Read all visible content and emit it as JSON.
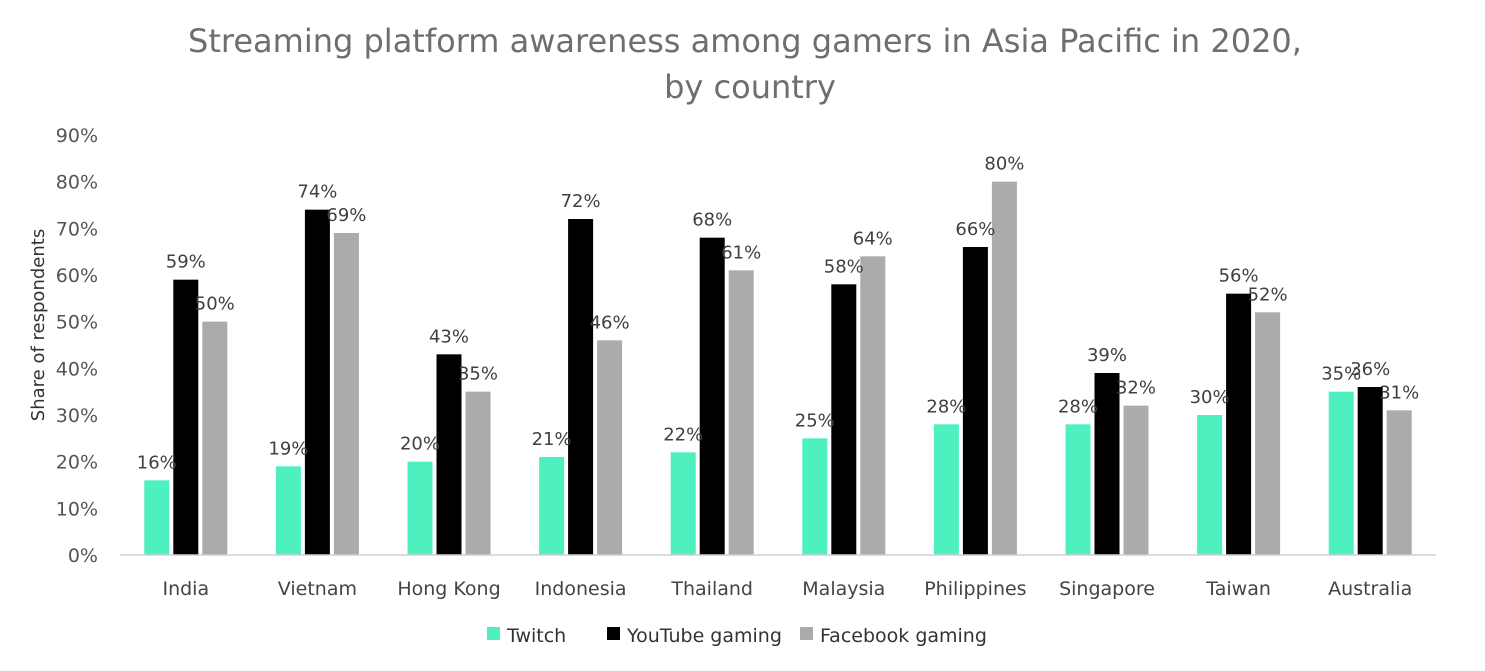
{
  "chart_data": {
    "type": "bar",
    "title_line1": "Streaming platform awareness among gamers in Asia Pacific in 2020,",
    "title_line2": "by country",
    "ylabel": "Share of respondents",
    "xlabel": "",
    "ylim": [
      0,
      90
    ],
    "yticks": [
      "0%",
      "10%",
      "20%",
      "30%",
      "40%",
      "50%",
      "60%",
      "70%",
      "80%",
      "90%"
    ],
    "grid": false,
    "legend_position": "bottom",
    "categories": [
      "India",
      "Vietnam",
      "Hong Kong",
      "Indonesia",
      "Thailand",
      "Malaysia",
      "Philippines",
      "Singapore",
      "Taiwan",
      "Australia"
    ],
    "series": [
      {
        "name": "Twitch",
        "color": "#4ef0c0",
        "values": [
          16,
          19,
          20,
          21,
          22,
          25,
          28,
          28,
          30,
          35
        ],
        "labels": [
          "16%",
          "19%",
          "20%",
          "21%",
          "22%",
          "25%",
          "28%",
          "28%",
          "30%",
          "35%"
        ]
      },
      {
        "name": "YouTube gaming",
        "color": "#000000",
        "values": [
          59,
          74,
          43,
          72,
          68,
          58,
          66,
          39,
          56,
          36
        ],
        "labels": [
          "59%",
          "74%",
          "43%",
          "72%",
          "68%",
          "58%",
          "66%",
          "39%",
          "56%",
          "36%"
        ]
      },
      {
        "name": "Facebook gaming",
        "color": "#ababab",
        "values": [
          50,
          69,
          35,
          46,
          61,
          64,
          80,
          32,
          52,
          31
        ],
        "labels": [
          "50%",
          "69%",
          "35%",
          "46%",
          "61%",
          "64%",
          "80%",
          "32%",
          "52%",
          "31%"
        ]
      }
    ]
  }
}
